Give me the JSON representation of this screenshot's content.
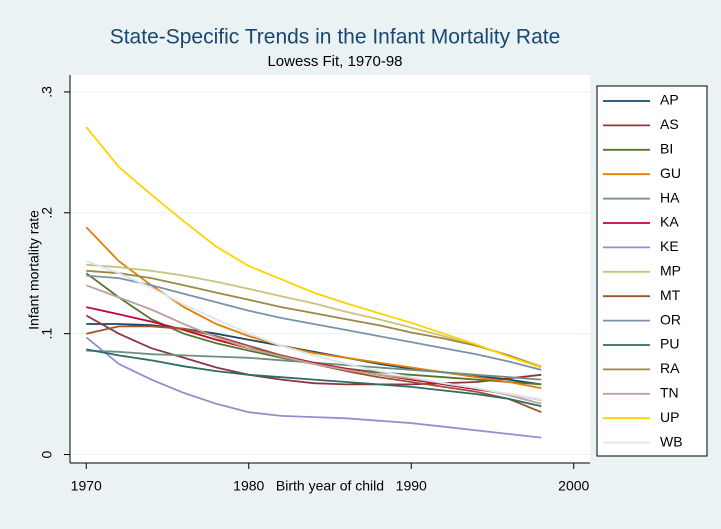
{
  "chart_data": {
    "type": "line",
    "title": "State-Specific Trends in the Infant Mortality Rate",
    "subtitle": "Lowess Fit, 1970-98",
    "x_label": "Birth year of child",
    "y_label": "Infant mortality rate",
    "x": [
      1970,
      1972,
      1974,
      1976,
      1978,
      1980,
      1982,
      1984,
      1986,
      1988,
      1990,
      1992,
      1994,
      1996,
      1998
    ],
    "xlim": [
      1969,
      2001
    ],
    "xticks": [
      1970,
      1980,
      1990,
      2000
    ],
    "ylim": [
      -0.007,
      0.314
    ],
    "yticks": [
      0,
      {
        "value": 0.1,
        "label": ".1"
      },
      {
        "value": 0.2,
        "label": ".2"
      },
      {
        "value": 0.3,
        "label": ".3"
      }
    ],
    "grid": true,
    "legend": "right",
    "series": [
      {
        "name": "AP",
        "color": "#1a476f",
        "values": [
          0.108,
          0.108,
          0.107,
          0.104,
          0.1,
          0.095,
          0.09,
          0.085,
          0.08,
          0.075,
          0.071,
          0.068,
          0.065,
          0.062,
          0.058
        ]
      },
      {
        "name": "AS",
        "color": "#90353b",
        "values": [
          0.115,
          0.1,
          0.088,
          0.08,
          0.072,
          0.066,
          0.062,
          0.059,
          0.058,
          0.058,
          0.058,
          0.059,
          0.06,
          0.063,
          0.066
        ]
      },
      {
        "name": "BI",
        "color": "#55752f",
        "values": [
          0.15,
          0.13,
          0.112,
          0.1,
          0.092,
          0.086,
          0.08,
          0.075,
          0.071,
          0.068,
          0.066,
          0.064,
          0.062,
          0.06,
          0.058
        ]
      },
      {
        "name": "GU",
        "color": "#e37e00",
        "values": [
          0.188,
          0.16,
          0.14,
          0.122,
          0.108,
          0.098,
          0.09,
          0.084,
          0.08,
          0.076,
          0.072,
          0.068,
          0.064,
          0.06,
          0.055
        ]
      },
      {
        "name": "HA",
        "color": "#6e8e84",
        "values": [
          0.086,
          0.085,
          0.083,
          0.082,
          0.081,
          0.08,
          0.078,
          0.076,
          0.074,
          0.072,
          0.07,
          0.068,
          0.066,
          0.064,
          0.062
        ]
      },
      {
        "name": "KA",
        "color": "#c10534",
        "values": [
          0.122,
          0.116,
          0.11,
          0.103,
          0.095,
          0.088,
          0.082,
          0.076,
          0.071,
          0.066,
          0.062,
          0.058,
          0.054,
          0.05,
          0.045
        ]
      },
      {
        "name": "KE",
        "color": "#938dd2",
        "values": [
          0.097,
          0.075,
          0.062,
          0.051,
          0.042,
          0.035,
          0.032,
          0.031,
          0.03,
          0.028,
          0.026,
          0.023,
          0.02,
          0.017,
          0.014
        ]
      },
      {
        "name": "MP",
        "color": "#cac27e",
        "values": [
          0.157,
          0.155,
          0.152,
          0.148,
          0.143,
          0.137,
          0.131,
          0.125,
          0.118,
          0.112,
          0.105,
          0.098,
          0.09,
          0.082,
          0.073
        ]
      },
      {
        "name": "MT",
        "color": "#a0522d",
        "values": [
          0.1,
          0.106,
          0.106,
          0.104,
          0.098,
          0.09,
          0.082,
          0.075,
          0.069,
          0.064,
          0.06,
          0.056,
          0.052,
          0.046,
          0.035
        ]
      },
      {
        "name": "OR",
        "color": "#7b92a8",
        "values": [
          0.148,
          0.146,
          0.14,
          0.133,
          0.126,
          0.119,
          0.113,
          0.108,
          0.103,
          0.098,
          0.093,
          0.088,
          0.083,
          0.077,
          0.07
        ]
      },
      {
        "name": "PU",
        "color": "#2d6d66",
        "values": [
          0.087,
          0.082,
          0.078,
          0.073,
          0.069,
          0.066,
          0.064,
          0.062,
          0.06,
          0.058,
          0.056,
          0.053,
          0.05,
          0.046,
          0.04
        ]
      },
      {
        "name": "RA",
        "color": "#9c8847",
        "values": [
          0.152,
          0.15,
          0.146,
          0.14,
          0.134,
          0.128,
          0.122,
          0.117,
          0.112,
          0.107,
          0.101,
          0.096,
          0.09,
          0.082,
          0.072
        ]
      },
      {
        "name": "TN",
        "color": "#bfa19c",
        "values": [
          0.14,
          0.13,
          0.12,
          0.108,
          0.097,
          0.088,
          0.081,
          0.075,
          0.07,
          0.066,
          0.063,
          0.059,
          0.055,
          0.049,
          0.042
        ]
      },
      {
        "name": "UP",
        "color": "#ffd200",
        "values": [
          0.271,
          0.238,
          0.215,
          0.193,
          0.172,
          0.156,
          0.145,
          0.134,
          0.125,
          0.117,
          0.109,
          0.1,
          0.091,
          0.081,
          0.072
        ]
      },
      {
        "name": "WB",
        "color": "#d9e6eb",
        "values": [
          0.16,
          0.15,
          0.138,
          0.124,
          0.112,
          0.1,
          0.09,
          0.082,
          0.075,
          0.069,
          0.064,
          0.059,
          0.055,
          0.05,
          0.045
        ]
      }
    ]
  }
}
